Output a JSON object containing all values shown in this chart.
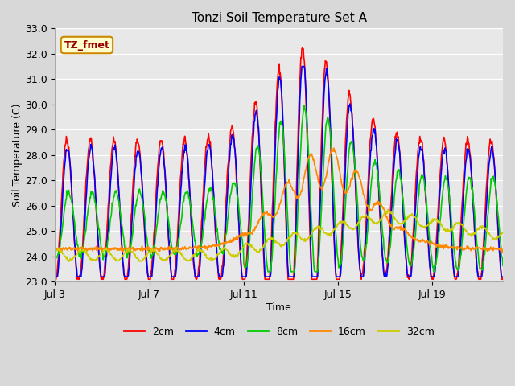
{
  "title": "Tonzi Soil Temperature Set A",
  "xlabel": "Time",
  "ylabel": "Soil Temperature (C)",
  "ylim": [
    23.0,
    33.0
  ],
  "yticks": [
    23.0,
    24.0,
    25.0,
    26.0,
    27.0,
    28.0,
    29.0,
    30.0,
    31.0,
    32.0,
    33.0
  ],
  "xtick_labels": [
    "Jul 3",
    "Jul 7",
    "Jul 11",
    "Jul 15",
    "Jul 19"
  ],
  "legend_labels": [
    "2cm",
    "4cm",
    "8cm",
    "16cm",
    "32cm"
  ],
  "legend_colors": [
    "#ff0000",
    "#0000ff",
    "#00cc00",
    "#ff8800",
    "#cccc00"
  ],
  "annotation_text": "TZ_fmet",
  "annotation_bg": "#ffffcc",
  "annotation_border": "#cc8800",
  "bg_color": "#e8e8e8",
  "grid_color": "#ffffff",
  "title_fontsize": 11,
  "axis_fontsize": 9
}
